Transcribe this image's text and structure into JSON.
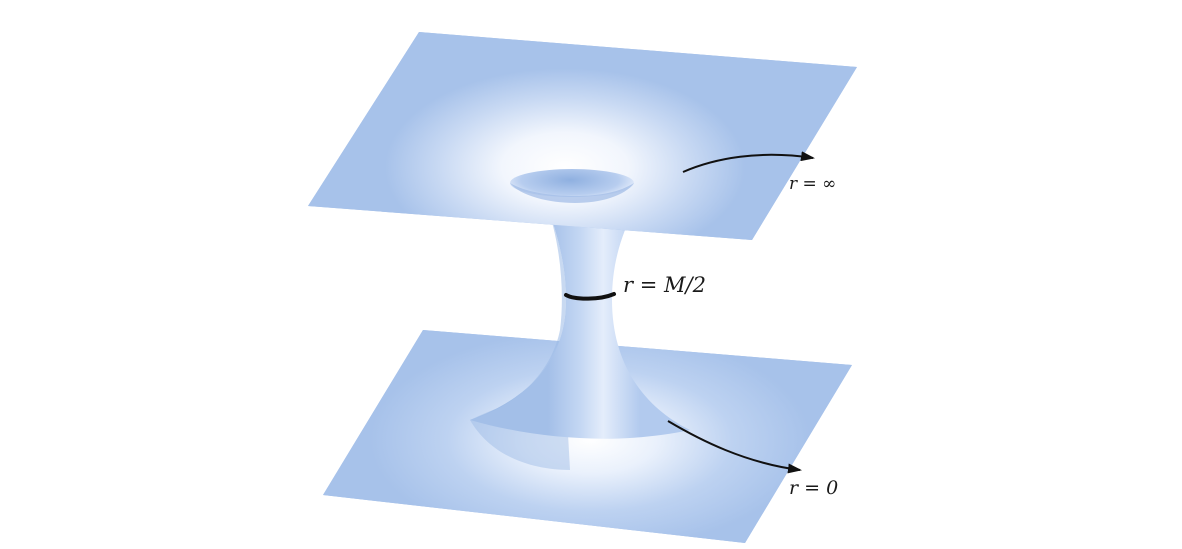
{
  "diagram": {
    "labels": {
      "r_infinity": "r = ∞",
      "r_throat": "r = M/2",
      "r_zero": "r = 0"
    },
    "colors": {
      "surface": "#a7c2ea",
      "surface_light": "#ffffff",
      "throat_ring": "#111111",
      "arrow": "#111111",
      "label": "#1a1a1a",
      "background": "#ffffff"
    },
    "parts": [
      "upper-sheet",
      "lower-sheet",
      "throat",
      "throat-ring",
      "arrow-outward",
      "arrow-inward"
    ]
  }
}
